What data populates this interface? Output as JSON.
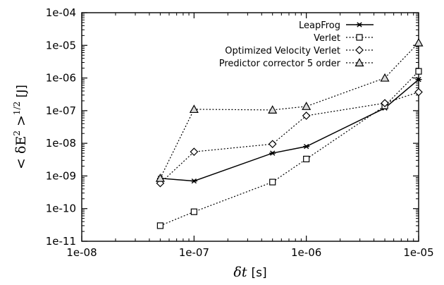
{
  "chart_data": {
    "type": "line",
    "xscale": "log",
    "yscale": "log",
    "xlim": [
      1e-08,
      1e-05
    ],
    "ylim": [
      1e-11,
      0.0001
    ],
    "xticks": [
      "1e-08",
      "1e-07",
      "1e-06",
      "1e-05"
    ],
    "yticks": [
      "1e-11",
      "1e-10",
      "1e-09",
      "1e-08",
      "1e-07",
      "1e-06",
      "1e-05",
      "1e-04"
    ],
    "xlabel_symbol": "δt",
    "xlabel_unit": "[s]",
    "ylabel_lhs": "< δE",
    "ylabel_exp": "2",
    "ylabel_rhs": " >",
    "ylabel_power": "1/2",
    "ylabel_unit": " [J]",
    "grid": false,
    "legend_position": "top-right",
    "series": [
      {
        "name": "LeapFrog",
        "marker": "star",
        "dash": "none",
        "points": [
          [
            5e-08,
            8.5e-10
          ],
          [
            1e-07,
            7e-10
          ],
          [
            5e-07,
            5e-09
          ],
          [
            1e-06,
            8e-09
          ],
          [
            5e-06,
            1.2e-07
          ],
          [
            1e-05,
            9e-07
          ]
        ]
      },
      {
        "name": "Verlet",
        "marker": "square",
        "dash": "dotted",
        "points": [
          [
            5e-08,
            3e-11
          ],
          [
            1e-07,
            8e-11
          ],
          [
            5e-07,
            6.5e-10
          ],
          [
            1e-06,
            3.3e-09
          ],
          [
            5e-06,
            1.4e-07
          ],
          [
            1e-05,
            1.6e-06
          ]
        ]
      },
      {
        "name": "Optimized Velocity Verlet",
        "marker": "diamond",
        "dash": "dotted",
        "points": [
          [
            5e-08,
            6e-10
          ],
          [
            1e-07,
            5.5e-09
          ],
          [
            5e-07,
            9.5e-09
          ],
          [
            1e-06,
            7e-08
          ],
          [
            5e-06,
            1.7e-07
          ],
          [
            1e-05,
            3.7e-07
          ]
        ]
      },
      {
        "name": "Predictor corrector 5 order",
        "marker": "triangle",
        "dash": "dotted",
        "points": [
          [
            5e-08,
            8.5e-10
          ],
          [
            1e-07,
            1.1e-07
          ],
          [
            5e-07,
            1.05e-07
          ],
          [
            1e-06,
            1.35e-07
          ],
          [
            5e-06,
            1e-06
          ],
          [
            1e-05,
            1.2e-05
          ]
        ]
      }
    ]
  }
}
